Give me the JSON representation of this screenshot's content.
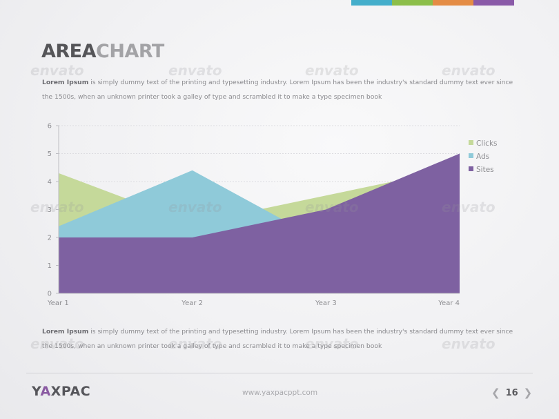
{
  "colors": {
    "strip": [
      "#44aecb",
      "#8cbe4a",
      "#e48c45",
      "#8a5aa8"
    ],
    "clicks": "#c5d99a",
    "ads": "#8fcad9",
    "sites": "#7e61a1"
  },
  "header": {
    "title_part1": "AREA",
    "title_part2": "CHART"
  },
  "watermark_text": "envato",
  "paragraph1": {
    "lead": "Lorem Ipsum",
    "body": " is simply dummy text of the printing and typesetting industry. Lorem Ipsum has been the industry's standard dummy text ever since the 1500s, when an unknown printer took a galley of type and scrambled it to make a type specimen book"
  },
  "paragraph2": {
    "lead": "Lorem Ipsum",
    "body": " is simply dummy text of the printing and typesetting industry. Lorem Ipsum has been the industry's standard dummy text ever since the 1500s, when an unknown printer took a galley of type and scrambled it to make a type specimen book"
  },
  "chart_data": {
    "type": "area",
    "categories": [
      "Year 1",
      "Year 2",
      "Year 3",
      "Year 4"
    ],
    "series": [
      {
        "name": "Clicks",
        "values": [
          4.3,
          2.5,
          3.5,
          4.5
        ]
      },
      {
        "name": "Ads",
        "values": [
          2.4,
          4.4,
          1.8,
          2.8
        ]
      },
      {
        "name": "Sites",
        "values": [
          2,
          2,
          3,
          5
        ]
      }
    ],
    "y_ticks": [
      0,
      1,
      2,
      3,
      4,
      5,
      6
    ],
    "ylim": [
      0,
      6
    ],
    "legend_position": "right",
    "grid": "horizontal"
  },
  "footer": {
    "brand_pre": "Y",
    "brand_accent": "A",
    "brand_post": "XPAC",
    "url": "www.yaxpacppt.com",
    "page": "16",
    "prev_arrow": "❮",
    "next_arrow": "❯"
  }
}
